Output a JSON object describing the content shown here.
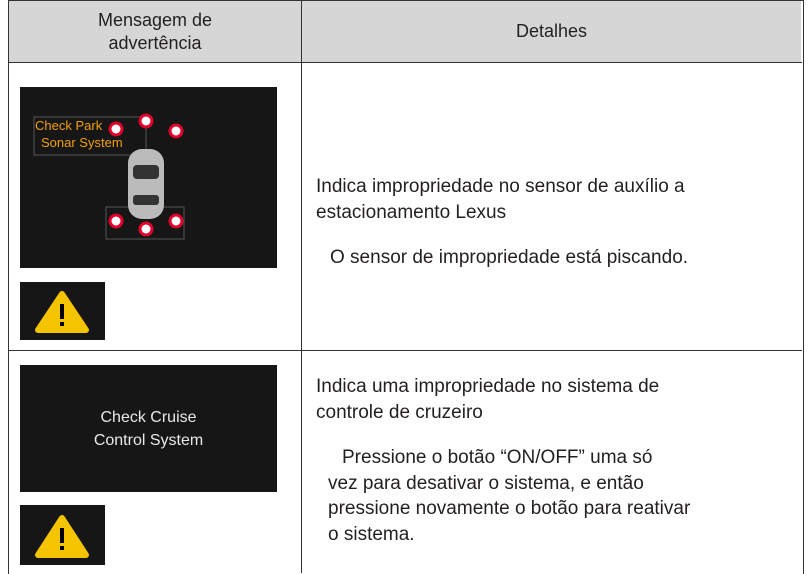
{
  "header": {
    "col1": [
      "Mensagem de",
      "advertência"
    ],
    "col2": "Detalhes"
  },
  "rows": [
    {
      "screen": [
        "Check Park",
        "Sonar System"
      ],
      "details": [
        "Indica impropriedade no sensor de auxílio a",
        "estacionamento Lexus"
      ],
      "note": [
        "O sensor de impropriedade está piscando."
      ]
    },
    {
      "screen": [
        "Check Cruise",
        "Control System"
      ],
      "details": [
        "Indica uma impropriedade no sistema de",
        "controle de cruzeiro"
      ],
      "note": [
        "Pressione o botão “ON/OFF” uma só",
        "vez para desativar o sistema, e então",
        "pressione novamente o botão para reativar",
        "o sistema."
      ]
    }
  ]
}
